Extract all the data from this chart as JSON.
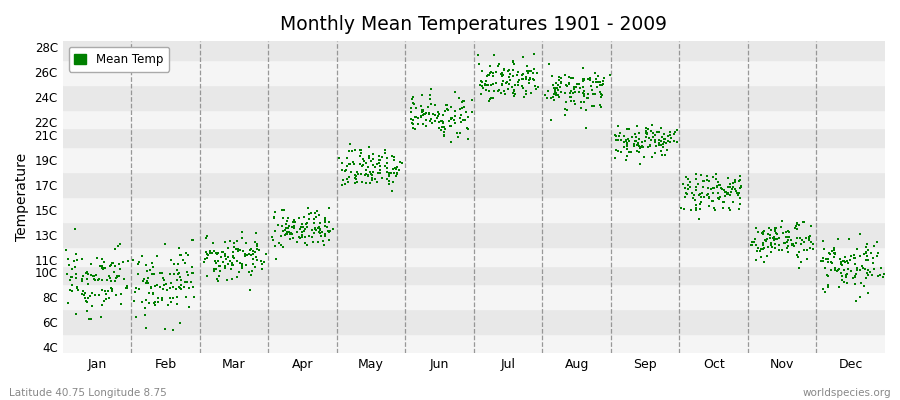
{
  "title": "Monthly Mean Temperatures 1901 - 2009",
  "ylabel": "Temperature",
  "xlabel_bottom_left": "Latitude 40.75 Longitude 8.75",
  "xlabel_bottom_right": "worldspecies.org",
  "legend_label": "Mean Temp",
  "dot_color": "#008000",
  "background_color": "#ffffff",
  "band_color_light": "#e8e8e8",
  "band_color_white": "#f5f5f5",
  "yticks": [
    4,
    6,
    8,
    10,
    11,
    13,
    15,
    17,
    19,
    21,
    22,
    24,
    26,
    28
  ],
  "ytick_labels": [
    "4C",
    "6C",
    "8C",
    "10C",
    "11C",
    "13C",
    "15C",
    "17C",
    "19C",
    "21C",
    "22C",
    "24C",
    "26C",
    "28C"
  ],
  "ylim": [
    3.5,
    28.5
  ],
  "months": [
    "Jan",
    "Feb",
    "Mar",
    "Apr",
    "May",
    "Jun",
    "Jul",
    "Aug",
    "Sep",
    "Oct",
    "Nov",
    "Dec"
  ],
  "month_centers": [
    0.5,
    1.5,
    2.5,
    3.5,
    4.5,
    5.5,
    6.5,
    7.5,
    8.5,
    9.5,
    10.5,
    11.5
  ],
  "month_boundaries": [
    0,
    1,
    2,
    3,
    4,
    5,
    6,
    7,
    8,
    9,
    10,
    11,
    12
  ],
  "xlim": [
    0,
    12
  ],
  "month_mean_temps": [
    9.2,
    9.1,
    11.0,
    13.3,
    18.2,
    22.4,
    25.3,
    24.3,
    20.3,
    16.3,
    12.3,
    10.3
  ],
  "month_temp_std": [
    1.3,
    1.5,
    0.9,
    0.8,
    0.9,
    0.9,
    0.8,
    0.8,
    0.6,
    0.7,
    0.8,
    1.0
  ],
  "n_years": 109
}
